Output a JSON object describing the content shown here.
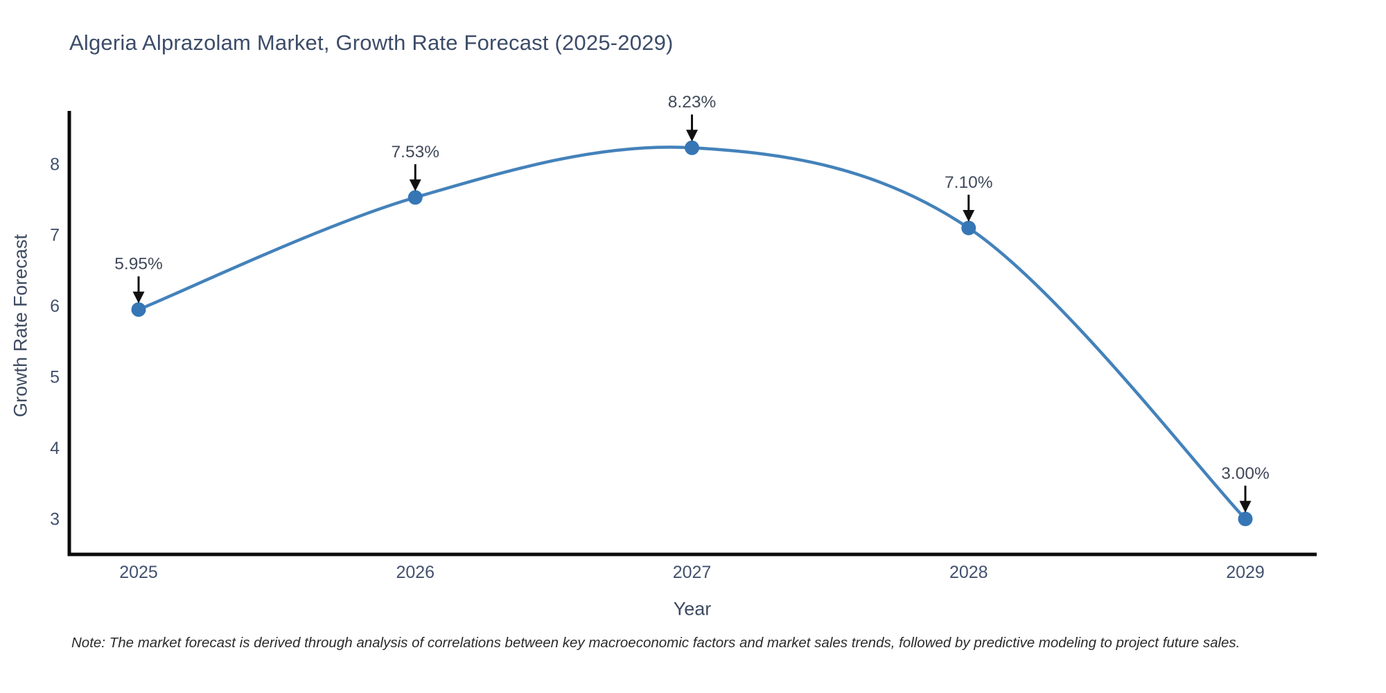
{
  "chart_data": {
    "type": "line",
    "title": "Algeria Alprazolam Market, Growth Rate Forecast (2025-2029)",
    "xlabel": "Year",
    "ylabel": "Growth Rate Forecast",
    "categories": [
      "2025",
      "2026",
      "2027",
      "2028",
      "2029"
    ],
    "values": [
      5.95,
      7.53,
      8.23,
      7.1,
      3.0
    ],
    "point_labels": [
      "5.95%",
      "7.53%",
      "8.23%",
      "7.10%",
      "3.00%"
    ],
    "y_ticks": [
      3,
      4,
      5,
      6,
      7,
      8
    ],
    "ylim": [
      2.5,
      8.75
    ],
    "grid": false,
    "legend": "none",
    "line_style": "spline",
    "marker": "circle",
    "colors": {
      "line": "#4482ba",
      "marker": "#3676b5",
      "axis": "#0a0a0a",
      "tick_label": "#42516d",
      "annotation_text": "#40495a",
      "arrow": "#111111"
    },
    "footnote": "Note: The market forecast is derived through analysis of correlations between key macroeconomic factors and market sales trends, followed by predictive modeling to project future sales."
  }
}
